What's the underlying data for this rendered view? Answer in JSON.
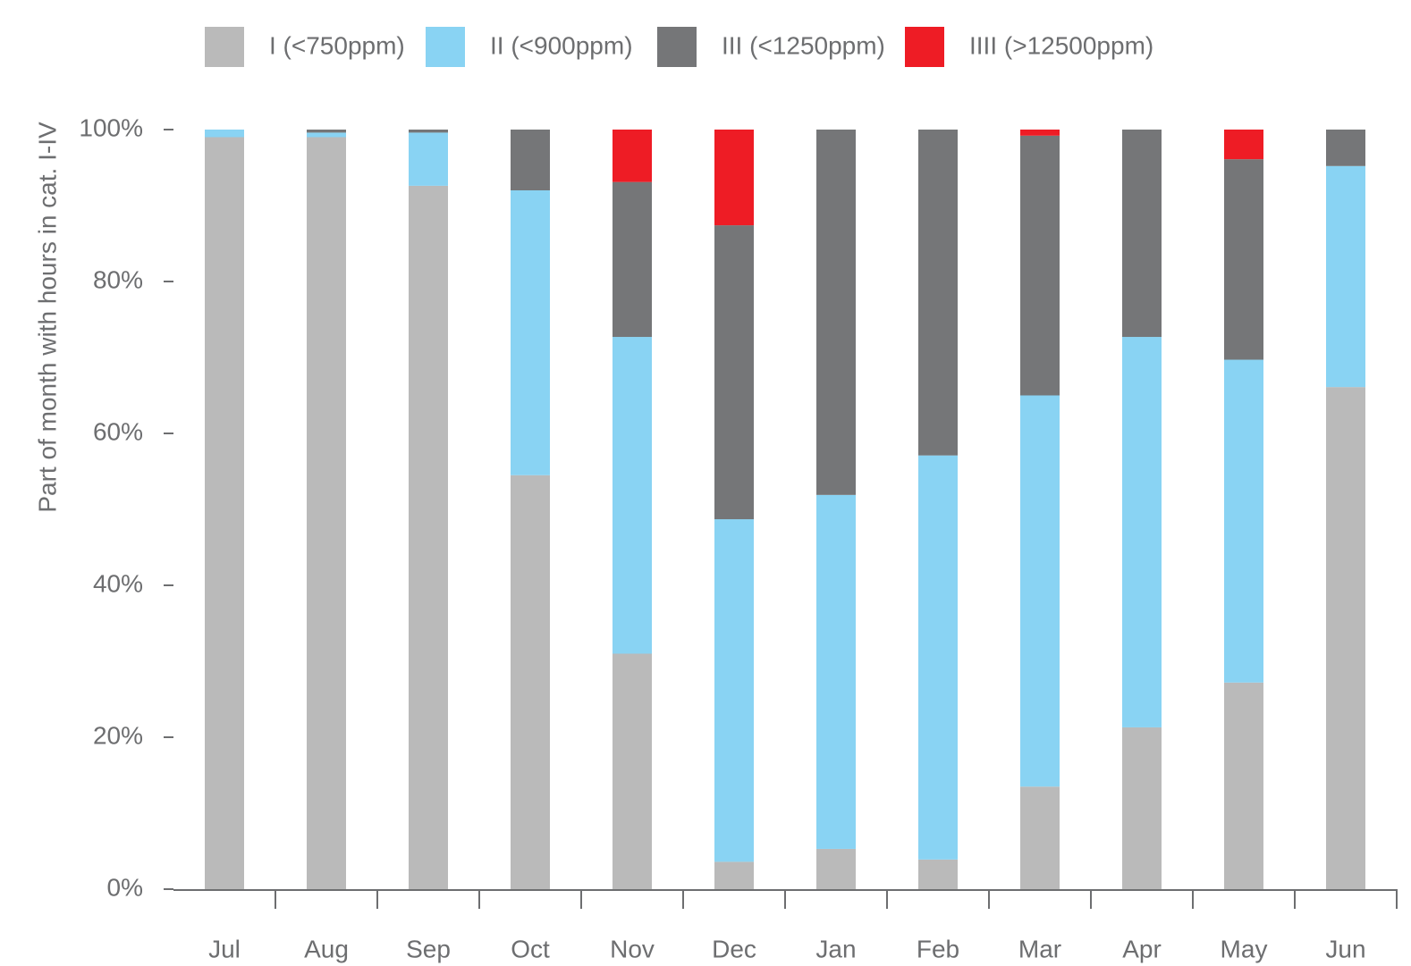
{
  "chart_data": {
    "type": "stacked_bar",
    "y_label": "Part of month with hours in cat. I-IV",
    "categories": [
      "Jul",
      "Aug",
      "Sep",
      "Oct",
      "Nov",
      "Dec",
      "Jan",
      "Feb",
      "Mar",
      "Apr",
      "May",
      "Jun"
    ],
    "series": [
      {
        "name": "I (<750ppm)",
        "color": "#bababa",
        "values": [
          99,
          99,
          92.6,
          54.5,
          31,
          3.6,
          5.3,
          3.9,
          13.5,
          21.3,
          27.2,
          66.1
        ]
      },
      {
        "name": "II (<900ppm)",
        "color": "#89d3f3",
        "values": [
          1,
          0.6,
          7,
          37.5,
          41.7,
          45.1,
          46.6,
          53.2,
          51.5,
          51.4,
          42.5,
          29.1
        ]
      },
      {
        "name": "III (<1250ppm)",
        "color": "#757678",
        "values": [
          0,
          0.4,
          0.4,
          8,
          20.4,
          38.7,
          48.1,
          42.9,
          34.2,
          27.3,
          26.4,
          4.8
        ]
      },
      {
        "name": "IIII (>12500ppm)",
        "color": "#ee1c25",
        "values": [
          0,
          0,
          0,
          0,
          6.9,
          12.6,
          0,
          0,
          0.8,
          0,
          3.9,
          0
        ]
      }
    ],
    "ylim": [
      0,
      100
    ],
    "yticks": [
      {
        "value": 0,
        "label": "0%"
      },
      {
        "value": 20,
        "label": "20%"
      },
      {
        "value": 40,
        "label": "40%"
      },
      {
        "value": 60,
        "label": "60%"
      },
      {
        "value": 80,
        "label": "80%"
      },
      {
        "value": 100,
        "label": "100%"
      }
    ],
    "legend": "top"
  }
}
